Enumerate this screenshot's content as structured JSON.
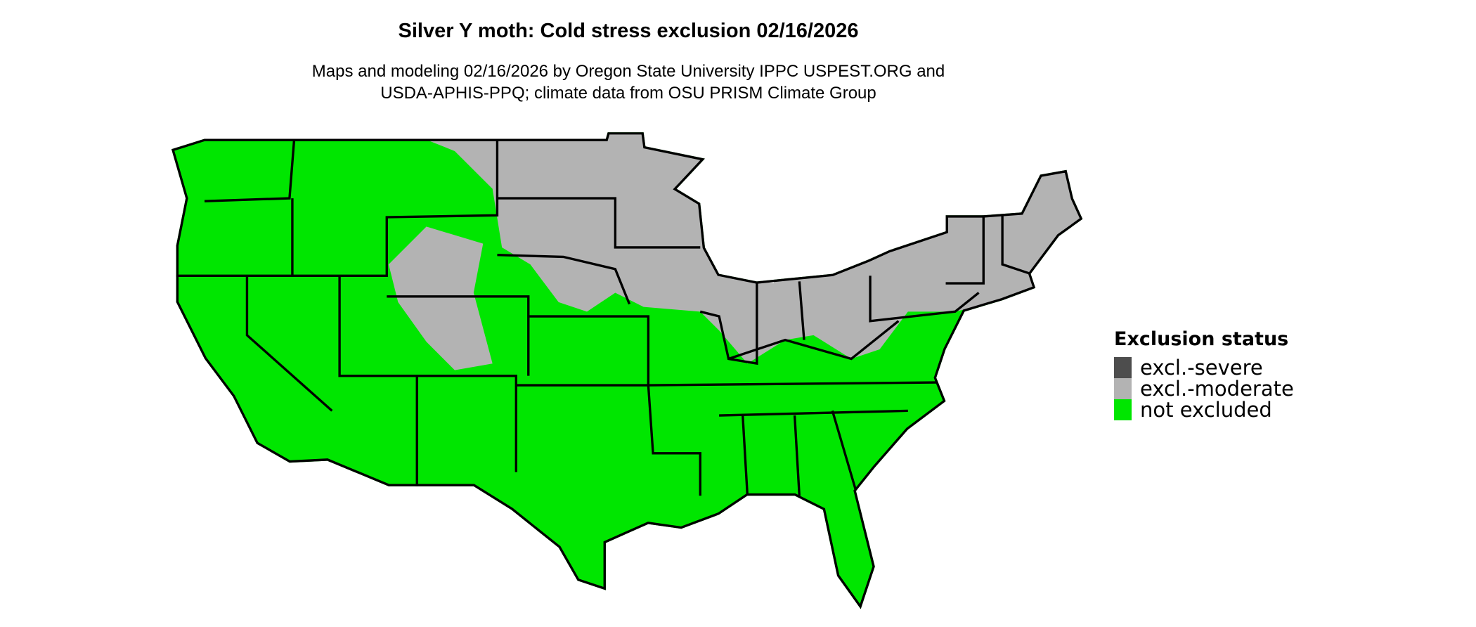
{
  "title": "Silver Y moth: Cold stress exclusion 02/16/2026",
  "subtitle_line1": "Maps and modeling 02/16/2026 by Oregon State University IPPC USPEST.ORG and",
  "subtitle_line2": "USDA-APHIS-PPQ; climate data from OSU PRISM Climate Group",
  "legend": {
    "title": "Exclusion status",
    "items": [
      {
        "label": "excl.-severe",
        "color": "#4d4d4d"
      },
      {
        "label": "excl.-moderate",
        "color": "#b3b3b3"
      },
      {
        "label": "not excluded",
        "color": "#00e600"
      }
    ]
  },
  "map": {
    "region": "contiguous United States",
    "colors": {
      "not_excluded": "#00e600",
      "moderate": "#b3b3b3",
      "borders": "#000000"
    },
    "moderate_exclusion_areas": [
      "Northern Plains",
      "Upper Midwest",
      "Great Lakes",
      "Northeast",
      "Rocky Mountain highlands"
    ]
  }
}
